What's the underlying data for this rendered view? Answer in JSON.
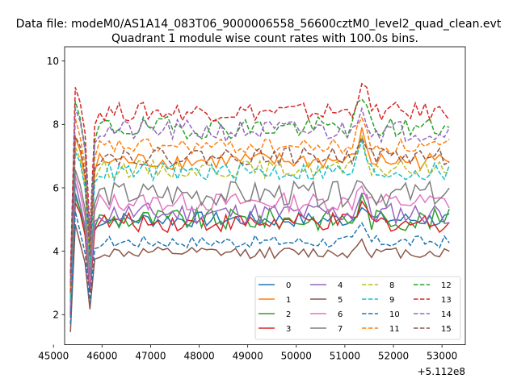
{
  "chart_data": {
    "type": "line",
    "suptitle": "Data file: modeM0/AS1A14_083T06_9000006558_56600cztM0_level2_quad_clean.evt",
    "title": "Quadrant 1 module wise count rates with 100.0s bins.",
    "xlabel": "",
    "ylabel": "",
    "x_offset_label": "+5.112e8",
    "xlim": [
      45230,
      53480
    ],
    "ylim": [
      1.05,
      10.45
    ],
    "xticks": [
      45000,
      46000,
      47000,
      48000,
      49000,
      50000,
      51000,
      52000,
      53000
    ],
    "xtick_labels": [
      "45000",
      "46000",
      "47000",
      "48000",
      "49000",
      "50000",
      "51000",
      "52000",
      "53000"
    ],
    "yticks": [
      2,
      4,
      6,
      8,
      10
    ],
    "ytick_labels": [
      "2",
      "4",
      "6",
      "8",
      "10"
    ],
    "x_start": 45350,
    "x_step": 100,
    "legend_position": "lower-right",
    "series": [
      {
        "name": "0",
        "color": "#1f77b4",
        "dash": "solid",
        "level": 5.0,
        "first": 1.9,
        "noise": 0.25
      },
      {
        "name": "1",
        "color": "#ff7f0e",
        "dash": "solid",
        "level": 6.85,
        "first": 2.6,
        "noise": 0.28
      },
      {
        "name": "2",
        "color": "#2ca02c",
        "dash": "solid",
        "level": 5.0,
        "first": 2.2,
        "noise": 0.35
      },
      {
        "name": "3",
        "color": "#d62728",
        "dash": "solid",
        "level": 4.9,
        "first": 2.0,
        "noise": 0.3
      },
      {
        "name": "4",
        "color": "#9467bd",
        "dash": "solid",
        "level": 5.2,
        "first": 2.1,
        "noise": 0.35
      },
      {
        "name": "5",
        "color": "#8c564b",
        "dash": "solid",
        "level": 3.95,
        "first": 1.45,
        "noise": 0.18
      },
      {
        "name": "6",
        "color": "#e377c2",
        "dash": "solid",
        "level": 5.55,
        "first": 2.3,
        "noise": 0.3
      },
      {
        "name": "7",
        "color": "#7f7f7f",
        "dash": "solid",
        "level": 5.8,
        "first": 2.4,
        "noise": 0.4
      },
      {
        "name": "8",
        "color": "#bcbd22",
        "dash": "dashed",
        "level": 6.6,
        "first": 2.5,
        "noise": 0.28
      },
      {
        "name": "9",
        "color": "#17becf",
        "dash": "dashed",
        "level": 6.5,
        "first": 2.5,
        "noise": 0.3
      },
      {
        "name": "10",
        "color": "#1f77b4",
        "dash": "dashed",
        "level": 4.3,
        "first": 1.7,
        "noise": 0.2
      },
      {
        "name": "11",
        "color": "#ff7f0e",
        "dash": "dashed",
        "level": 7.3,
        "first": 2.8,
        "noise": 0.25
      },
      {
        "name": "12",
        "color": "#2ca02c",
        "dash": "dashed",
        "level": 7.9,
        "first": 3.0,
        "noise": 0.35
      },
      {
        "name": "13",
        "color": "#d62728",
        "dash": "dashed",
        "level": 8.4,
        "first": 3.3,
        "noise": 0.3
      },
      {
        "name": "14",
        "color": "#9467bd",
        "dash": "dashed",
        "level": 7.8,
        "first": 3.0,
        "noise": 0.35
      },
      {
        "name": "15",
        "color": "#8c564b",
        "dash": "dashed",
        "level": 7.0,
        "first": 2.7,
        "noise": 0.28
      }
    ]
  }
}
